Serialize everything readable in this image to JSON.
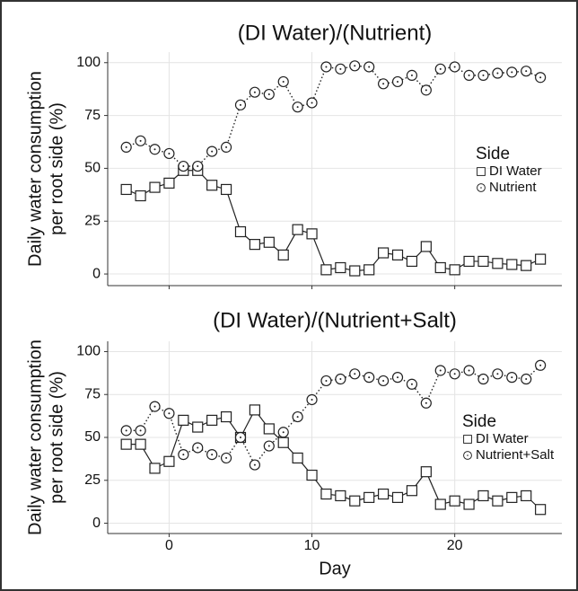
{
  "chart_data": [
    {
      "type": "line",
      "title": "(DI Water)/(Nutrient)",
      "ylabel": [
        "Daily water consumption",
        "per root side (%)"
      ],
      "legend_title": "Side",
      "legend": "right",
      "x": [
        -3,
        -2,
        -1,
        0,
        1,
        2,
        3,
        4,
        5,
        6,
        7,
        8,
        9,
        10,
        11,
        12,
        13,
        14,
        15,
        16,
        17,
        18,
        19,
        20,
        21,
        22,
        23,
        24,
        25,
        26
      ],
      "series": [
        {
          "name": "DI Water",
          "color": "#222222",
          "marker": "square",
          "line": "solid",
          "values": [
            40,
            37,
            41,
            43,
            49,
            49,
            42,
            40,
            20,
            14,
            15,
            9,
            21,
            19,
            2,
            3,
            1.5,
            2,
            10,
            9,
            6,
            13,
            3,
            2,
            6,
            6,
            5,
            4.5,
            4,
            7
          ]
        },
        {
          "name": "Nutrient",
          "color": "#222222",
          "marker": "circle-dot",
          "line": "dotted",
          "values": [
            60,
            63,
            59,
            57,
            51,
            51,
            58,
            60,
            80,
            86,
            85,
            91,
            79,
            81,
            98,
            97,
            98.5,
            98,
            90,
            91,
            94,
            87,
            97,
            98,
            94,
            94,
            95,
            95.5,
            96,
            93
          ]
        }
      ],
      "xlim": [
        -4.3,
        27.5
      ],
      "xticks": [
        0,
        10,
        20
      ],
      "show_xtick_labels": false,
      "ylim": [
        -5.5,
        105
      ],
      "yticks": [
        0,
        25,
        50,
        75,
        100
      ],
      "grid": true
    },
    {
      "type": "line",
      "title": "(DI Water)/(Nutrient+Salt)",
      "ylabel": [
        "Daily water consumption",
        "per root side (%)"
      ],
      "xlabel": "Day",
      "legend_title": "Side",
      "legend": "right",
      "x": [
        -3,
        -2,
        -1,
        0,
        1,
        2,
        3,
        4,
        5,
        6,
        7,
        8,
        9,
        10,
        11,
        12,
        13,
        14,
        15,
        16,
        17,
        18,
        19,
        20,
        21,
        22,
        23,
        24,
        25,
        26
      ],
      "series": [
        {
          "name": "DI Water",
          "color": "#222222",
          "marker": "square",
          "line": "solid",
          "values": [
            46,
            46,
            32,
            36,
            60,
            56,
            60,
            62,
            50,
            66,
            55,
            47,
            38,
            28,
            17,
            16,
            13,
            15,
            17,
            15,
            19,
            30,
            11,
            13,
            11,
            16,
            13,
            15,
            16,
            8
          ]
        },
        {
          "name": "Nutrient+Salt",
          "color": "#222222",
          "marker": "circle-dot",
          "line": "dotted",
          "values": [
            54,
            54,
            68,
            64,
            40,
            44,
            40,
            38,
            50,
            34,
            45,
            53,
            62,
            72,
            83,
            84,
            87,
            85,
            83,
            85,
            81,
            70,
            89,
            87,
            89,
            84,
            87,
            85,
            84,
            92
          ]
        }
      ],
      "xlim": [
        -4.3,
        27.5
      ],
      "xticks": [
        0,
        10,
        20
      ],
      "show_xtick_labels": true,
      "ylim": [
        -6,
        106
      ],
      "yticks": [
        0,
        25,
        50,
        75,
        100
      ],
      "grid": true
    }
  ]
}
